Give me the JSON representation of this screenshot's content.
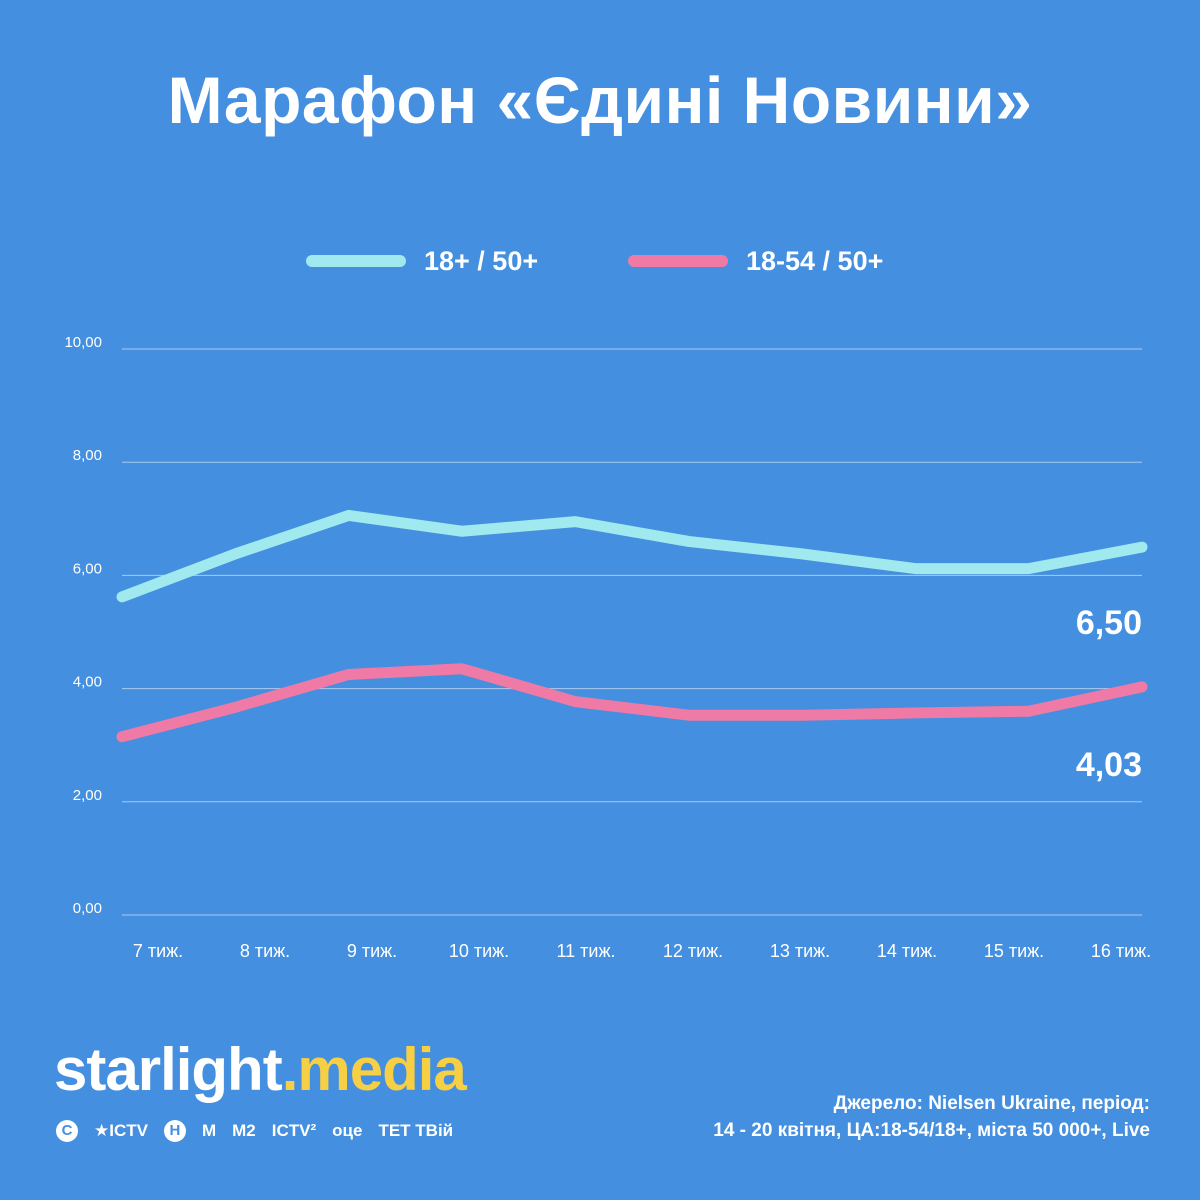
{
  "title": "Марафон «Єдині Новини»",
  "brand": {
    "name_part1": "starlight",
    "dot": ".",
    "name_part2": "media"
  },
  "channels": [
    "С",
    "★ICTV",
    "Н",
    "М",
    "М2",
    "ICTV²",
    "оце",
    "ТЕТ ТВій"
  ],
  "source": {
    "line1": "Джерело: Nielsen Ukraine, період:",
    "line2": "14 - 20 квітня, ЦА:18-54/18+, міста 50 000+, Live"
  },
  "colors": {
    "background": "#448fdf",
    "series1": "#9fe9ef",
    "series2": "#f07aa6",
    "brand_accent": "#f6cf45"
  },
  "chart_data": {
    "type": "line",
    "title": "Марафон «Єдині Новини»",
    "categories": [
      "7 тиж.",
      "8 тиж.",
      "9 тиж.",
      "10 тиж.",
      "11 тиж.",
      "12 тиж.",
      "13 тиж.",
      "14 тиж.",
      "15 тиж.",
      "16 тиж."
    ],
    "series": [
      {
        "name": "18+ / 50+",
        "color": "#9fe9ef",
        "values": [
          5.62,
          6.38,
          7.06,
          6.78,
          6.95,
          6.6,
          6.38,
          6.12,
          6.12,
          6.5
        ],
        "end_label": "6,50"
      },
      {
        "name": "18-54 / 50+",
        "color": "#f07aa6",
        "values": [
          3.15,
          3.67,
          4.25,
          4.35,
          3.77,
          3.53,
          3.53,
          3.57,
          3.6,
          4.03
        ],
        "end_label": "4,03"
      }
    ],
    "ylim": [
      0,
      10
    ],
    "yticks": [
      "0,00",
      "2,00",
      "4,00",
      "6,00",
      "8,00",
      "10,00"
    ],
    "grid": true,
    "legend": "top-center"
  }
}
